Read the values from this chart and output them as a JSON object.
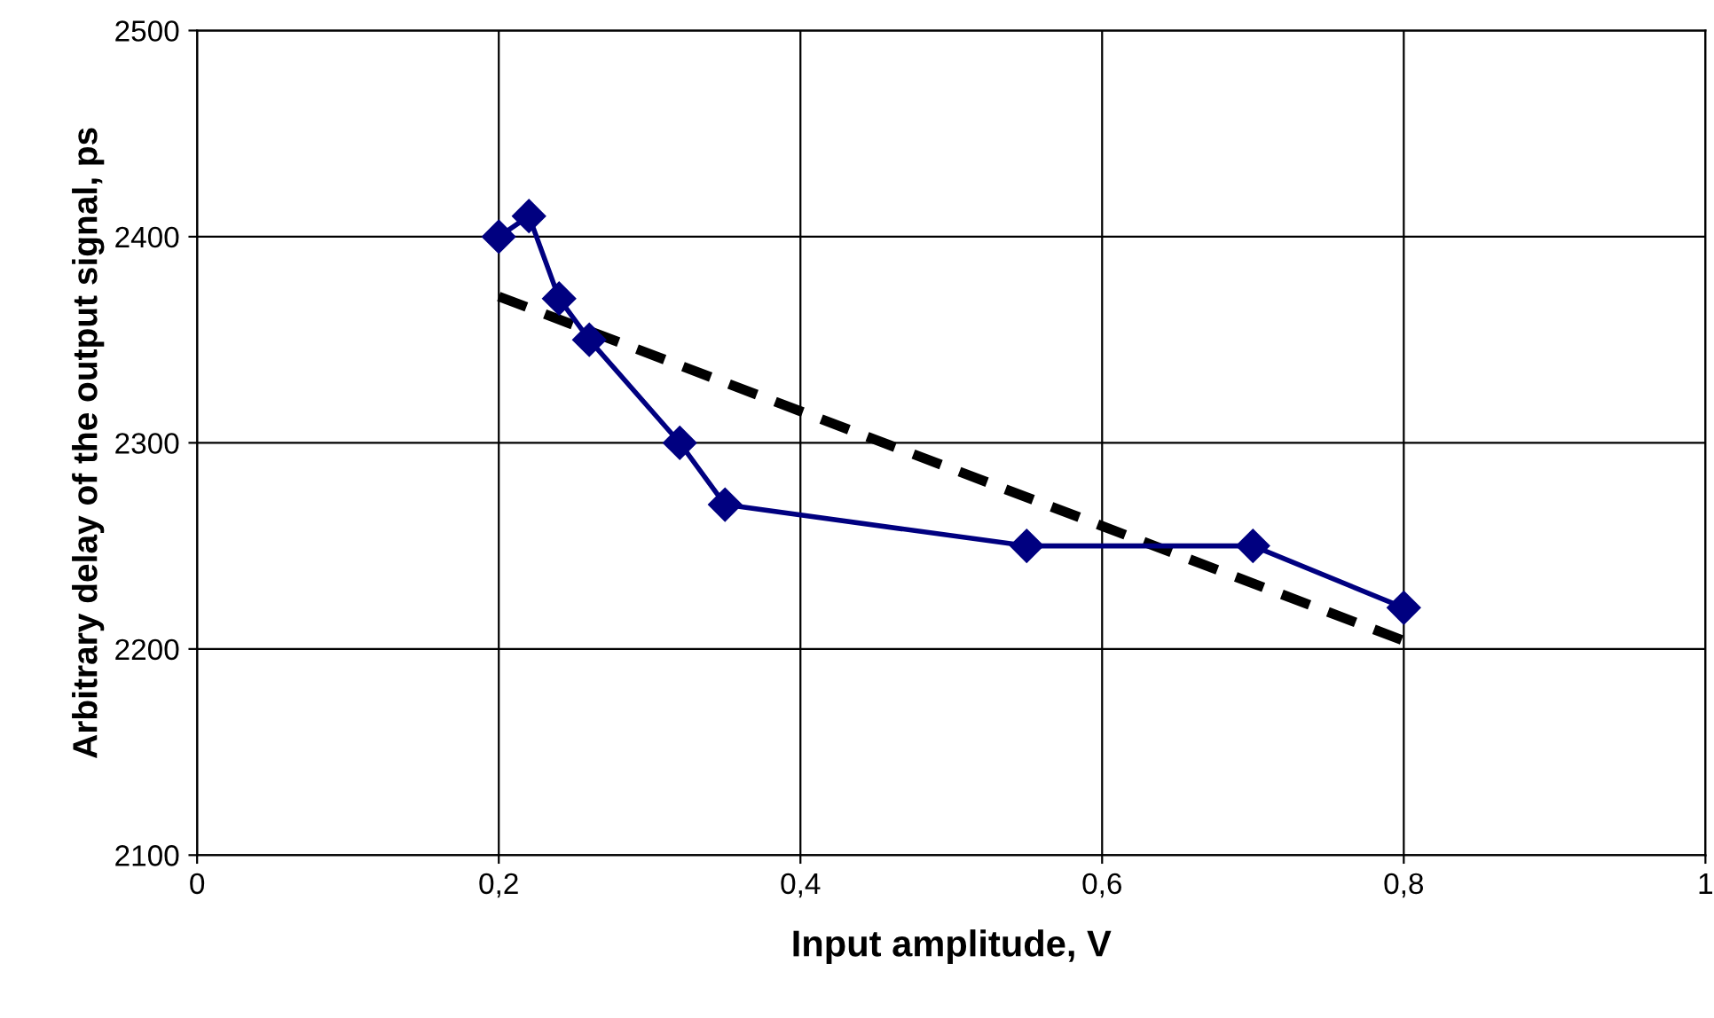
{
  "chart_data": {
    "type": "line",
    "xlabel": "Input amplitude, V",
    "ylabel": "Arbitrary delay of the output signal, ps",
    "xlim": [
      0,
      1
    ],
    "xticks": [
      0,
      {
        "value": 0.2,
        "label": "0,2"
      },
      {
        "value": 0.4,
        "label": "0,4"
      },
      {
        "value": 0.6,
        "label": "0,6"
      },
      {
        "value": 0.8,
        "label": "0,8"
      },
      1
    ],
    "ylim": [
      2100,
      2500
    ],
    "yticks": [
      2100,
      2200,
      2300,
      2400,
      2500
    ],
    "grid": true,
    "legend": false,
    "series": [
      {
        "color": "#000080",
        "marker": "diamond",
        "line_style": "solid",
        "x": [
          0.2,
          0.22,
          0.24,
          0.26,
          0.32,
          0.35,
          0.55,
          0.7,
          0.8
        ],
        "values": [
          2400,
          2410,
          2370,
          2350,
          2300,
          2270,
          2250,
          2250,
          2220
        ]
      },
      {
        "color": "#000000",
        "marker": "none",
        "line_style": "dashed",
        "x": [
          0.2,
          0.8
        ],
        "values": [
          2371,
          2204
        ]
      }
    ]
  }
}
